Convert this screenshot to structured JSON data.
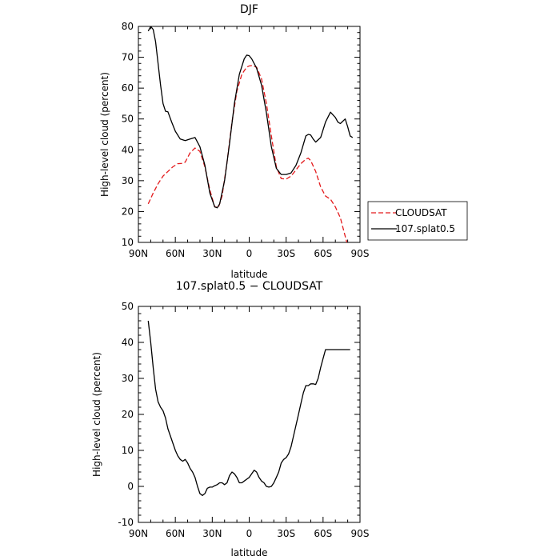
{
  "chart_data": [
    {
      "type": "line",
      "title": "DJF",
      "xlabel": "latitude",
      "ylabel": "High-level cloud (percent)",
      "xlim": [
        90,
        -90
      ],
      "ylim": [
        10,
        80
      ],
      "x_ticks": [
        90,
        60,
        30,
        0,
        -30,
        -60,
        -90
      ],
      "x_tick_labels": [
        "90N",
        "60N",
        "30N",
        "0",
        "30S",
        "60S",
        "90S"
      ],
      "y_ticks": [
        10,
        20,
        30,
        40,
        50,
        60,
        70,
        80
      ],
      "legend": "right",
      "series": [
        {
          "name": "CLOUDSAT",
          "color": "#e31a1c",
          "dash": true,
          "x": [
            82,
            78,
            74,
            70,
            66,
            62,
            58,
            55,
            52,
            48,
            44,
            40,
            36,
            32,
            28,
            25,
            22,
            18,
            14,
            10,
            6,
            2,
            0,
            -2,
            -6,
            -10,
            -14,
            -18,
            -22,
            -26,
            -30,
            -34,
            -38,
            -42,
            -46,
            -48,
            -50,
            -54,
            -58,
            -62,
            -66,
            -70,
            -74,
            -78,
            -80
          ],
          "y": [
            22.5,
            26,
            29,
            31.5,
            33,
            34.5,
            35.5,
            35.6,
            36,
            39,
            40.6,
            39.5,
            34.5,
            27,
            21.5,
            21.3,
            25,
            36,
            49,
            59,
            64.5,
            66.8,
            67.2,
            67.3,
            66.8,
            63,
            55,
            44.5,
            34.5,
            30.7,
            30.5,
            31.5,
            33.5,
            35.5,
            37,
            37.3,
            36.5,
            33,
            28,
            25,
            24,
            21.5,
            18,
            12,
            9
          ]
        },
        {
          "name": "107.splat0.5",
          "color": "#000000",
          "dash": false,
          "x": [
            82,
            80,
            78,
            76,
            74,
            72,
            70,
            68,
            66,
            63,
            60,
            56,
            52,
            48,
            44,
            40,
            36,
            32,
            28,
            26,
            24,
            20,
            16,
            12,
            8,
            4,
            2,
            0,
            -2,
            -6,
            -10,
            -14,
            -18,
            -22,
            -26,
            -30,
            -34,
            -38,
            -42,
            -46,
            -48,
            -50,
            -52,
            -54,
            -58,
            -62,
            -66,
            -70,
            -72,
            -74,
            -78,
            -80,
            -82,
            -84
          ],
          "y": [
            78.5,
            80,
            79,
            75,
            68,
            61,
            55,
            52.5,
            52.3,
            49,
            46,
            43.5,
            43,
            43.5,
            44,
            41,
            35,
            26,
            21.5,
            21.2,
            22.5,
            30,
            42,
            55,
            64.5,
            69.5,
            70.7,
            70.5,
            69.5,
            66.5,
            61,
            52,
            41,
            34,
            32,
            32,
            32.5,
            35,
            39,
            44.5,
            45,
            44.8,
            43.5,
            42.5,
            44,
            49,
            52.2,
            50.5,
            49,
            48.5,
            50,
            47.5,
            44.5,
            44
          ]
        }
      ]
    },
    {
      "type": "line",
      "title": "107.splat0.5 − CLOUDSAT",
      "xlabel": "latitude",
      "ylabel": "High-level cloud (percent)",
      "xlim": [
        90,
        -90
      ],
      "ylim": [
        -10,
        50
      ],
      "x_ticks": [
        90,
        60,
        30,
        0,
        -30,
        -60,
        -90
      ],
      "x_tick_labels": [
        "90N",
        "60N",
        "30N",
        "0",
        "30S",
        "60S",
        "90S"
      ],
      "y_ticks": [
        -10,
        0,
        10,
        20,
        30,
        40,
        50
      ],
      "series": [
        {
          "color": "#000000",
          "dash": false,
          "x": [
            82,
            80,
            78,
            76,
            74,
            72,
            70,
            68,
            66,
            64,
            62,
            60,
            58,
            56,
            54,
            52,
            50,
            48,
            46,
            44,
            42,
            40,
            38,
            36,
            34,
            32,
            30,
            28,
            26,
            24,
            22,
            20,
            18,
            16,
            14,
            12,
            10,
            8,
            6,
            4,
            2,
            0,
            -2,
            -4,
            -6,
            -8,
            -10,
            -12,
            -14,
            -16,
            -18,
            -20,
            -22,
            -24,
            -26,
            -28,
            -30,
            -32,
            -34,
            -36,
            -38,
            -40,
            -42,
            -44,
            -46,
            -48,
            -50,
            -52,
            -54,
            -56,
            -58,
            -60,
            -62,
            -64,
            -66,
            -68,
            -70,
            -72,
            -74,
            -76,
            -78,
            -80,
            -82
          ],
          "y": [
            46,
            40,
            33,
            27,
            23.5,
            22,
            21,
            19,
            16,
            14,
            12,
            10,
            8.5,
            7.5,
            7,
            7.5,
            6.5,
            5,
            4,
            2.5,
            0,
            -2,
            -2.5,
            -2,
            -0.5,
            -0.2,
            -0.2,
            0.2,
            0.5,
            1,
            1,
            0.5,
            1,
            3,
            4,
            3.5,
            2.5,
            1,
            1,
            1.5,
            2,
            2.5,
            3.5,
            4.5,
            4,
            2.5,
            1.5,
            1,
            0,
            -0.2,
            0,
            1,
            2.5,
            4,
            6.5,
            7.5,
            8,
            9,
            11,
            14,
            17,
            20,
            23,
            26,
            28,
            28,
            28.5,
            28.5,
            28.3,
            30,
            33,
            35.5,
            38,
            38,
            38,
            38,
            38,
            38,
            38,
            38,
            38,
            38,
            38
          ]
        }
      ]
    }
  ]
}
